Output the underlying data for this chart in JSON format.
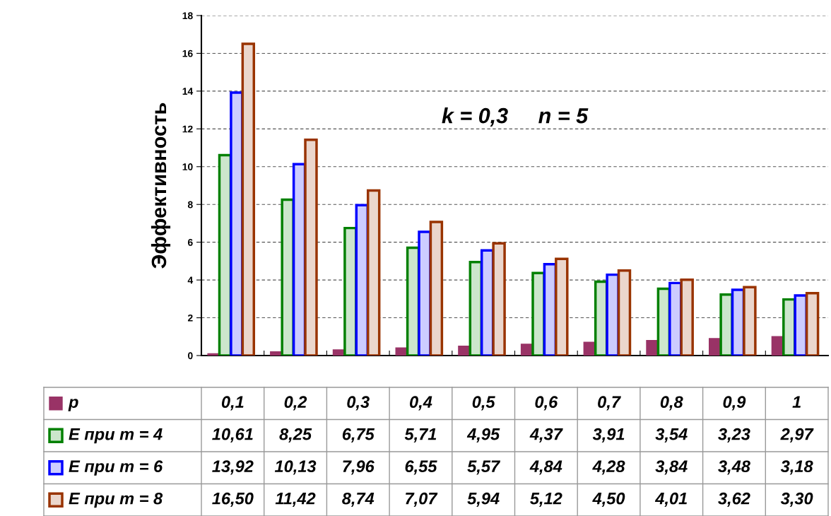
{
  "chart_data": {
    "type": "bar",
    "ylabel": "Эффективность",
    "annotations": [
      "k = 0,3     n = 5"
    ],
    "categories": [
      null,
      null,
      null,
      null,
      null,
      null,
      null,
      null,
      null,
      null
    ],
    "ylim": [
      0,
      18
    ],
    "yticks": [
      0,
      2,
      4,
      6,
      8,
      10,
      12,
      14,
      16,
      18
    ],
    "grid": "y",
    "data_labels": true,
    "legend": "bottom left",
    "series": [
      {
        "name": "p",
        "color": "#993366",
        "values": [
          0.1,
          0.2,
          0.3,
          0.4,
          0.5,
          0.6,
          0.7,
          0.8,
          0.9,
          1
        ],
        "value_labels": [
          "0,1",
          "0,2",
          "0,3",
          "0,4",
          "0,5",
          "0,6",
          "0,7",
          "0,8",
          "0,9",
          "1"
        ]
      },
      {
        "name": "E при m = 4",
        "color": "#008000",
        "values": [
          10.61,
          8.25,
          6.75,
          5.71,
          4.95,
          4.37,
          3.91,
          3.54,
          3.23,
          2.97
        ],
        "value_labels": [
          "10,61",
          "8,25",
          "6,75",
          "5,71",
          "4,95",
          "4,37",
          "3,91",
          "3,54",
          "3,23",
          "2,97"
        ]
      },
      {
        "name": "E при m = 6",
        "color": "#0000ff",
        "values": [
          13.92,
          10.13,
          7.96,
          6.55,
          5.57,
          4.84,
          4.28,
          3.84,
          3.48,
          3.18
        ],
        "value_labels": [
          "13,92",
          "10,13",
          "7,96",
          "6,55",
          "5,57",
          "4,84",
          "4,28",
          "3,84",
          "3,48",
          "3,18"
        ]
      },
      {
        "name": "E при m = 8",
        "color": "#993300",
        "values": [
          16.5,
          11.42,
          8.74,
          7.07,
          5.94,
          5.12,
          4.5,
          4.01,
          3.62,
          3.3
        ],
        "value_labels": [
          "16,50",
          "11,42",
          "8,74",
          "7,07",
          "5,94",
          "5,12",
          "4,50",
          "4,01",
          "3,62",
          "3,30"
        ]
      }
    ]
  }
}
